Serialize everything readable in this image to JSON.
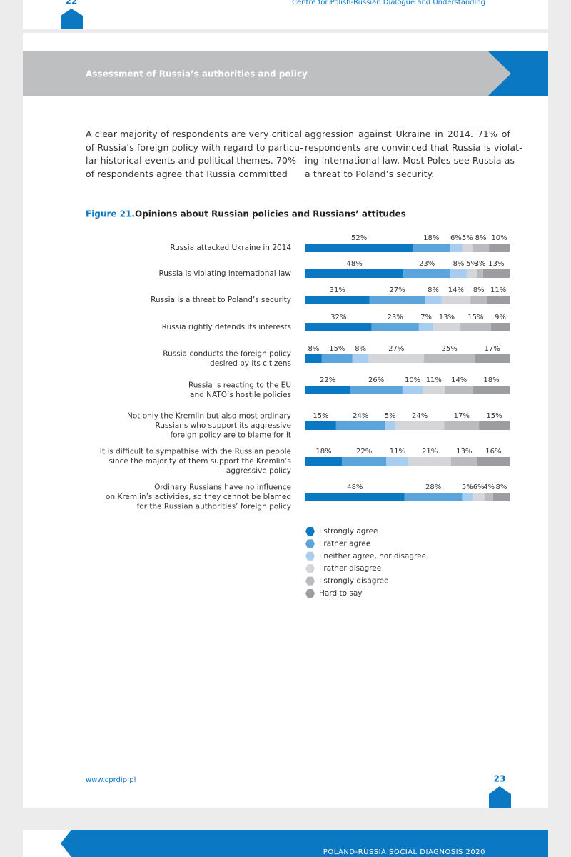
{
  "header": {
    "prev_page_number": "22",
    "prev_page_running_title": "Centre for Polish-Russian Dialogue and Understanding"
  },
  "section_title": "Assessment of Russia’s authorities and policy",
  "body": {
    "column_1": [
      "A clear majority of respondents are very critical",
      "of Russia’s foreign policy with regard to particu-",
      "lar historical events and political themes. 70%",
      "of respondents agree that Russia committed"
    ],
    "column_2": [
      "aggression against Ukraine in 2014. 71% of",
      "respondents are convinced that Russia is violat-",
      "ing international law. Most Poles see Russia as",
      "a threat to Poland’s security."
    ]
  },
  "figure": {
    "label": "Figure 21.",
    "title": "Opinions about Russian policies and Russians’ attitudes"
  },
  "chart_data": {
    "type": "bar",
    "orientation": "horizontal",
    "stacked": true,
    "categories": [
      [
        "Russia attacked Ukraine in 2014"
      ],
      [
        "Russia is violating international law"
      ],
      [
        "Russia is a threat to Poland’s security"
      ],
      [
        "Russia rightly defends its interests"
      ],
      [
        "Russia conducts the foreign policy",
        "desired by its citizens"
      ],
      [
        "Russia is reacting to the EU",
        "and NATO’s hostile policies"
      ],
      [
        "Not only the Kremlin but also most ordinary",
        "Russians who support its aggressive",
        "foreign policy are to blame for it"
      ],
      [
        "It is difficult to sympathise with the Russian people",
        "since the majority of them support the Kremlin’s",
        "aggressive policy"
      ],
      [
        "Ordinary Russians have no influence",
        "on Kremlin’s activities, so they cannot be blamed",
        "for the Russian authorities’ foreign policy"
      ]
    ],
    "series": [
      {
        "name": "I strongly agree",
        "color": "#0a78c2",
        "values": [
          52,
          48,
          31,
          32,
          8,
          22,
          15,
          18,
          48
        ],
        "value_labels": [
          "52%",
          "48%",
          "31%",
          "32%",
          "8%",
          "22%",
          "15%",
          "18%",
          "48%"
        ]
      },
      {
        "name": "I rather agree",
        "color": "#5ba5dc",
        "values": [
          18,
          23,
          27,
          23,
          15,
          26,
          24,
          22,
          28
        ],
        "value_labels": [
          "18%",
          "23%",
          "27%",
          "23%",
          "15%",
          "26%",
          "24%",
          "22%",
          "28%"
        ]
      },
      {
        "name": "I neither agree, nor disagree",
        "color": "#a8cdef",
        "values": [
          6,
          8,
          8,
          7,
          8,
          10,
          5,
          11,
          5
        ],
        "value_labels": [
          "6%",
          "8%",
          "8%",
          "7%",
          "8%",
          "10%",
          "5%",
          "11%",
          "5%"
        ]
      },
      {
        "name": "I rather disagree",
        "color": "#d4d6d9",
        "values": [
          5,
          5,
          14,
          13,
          27,
          11,
          24,
          21,
          6
        ],
        "value_labels": [
          "5%",
          "5%",
          "14%",
          "13%",
          "27%",
          "11%",
          "24%",
          "21%",
          "6%"
        ]
      },
      {
        "name": "I strongly disagree",
        "color": "#b9bbbe",
        "values": [
          8,
          3,
          8,
          15,
          25,
          14,
          17,
          13,
          4
        ],
        "value_labels": [
          "8%",
          "3%",
          "8%",
          "15%",
          "25%",
          "14%",
          "17%",
          "13%",
          "4%"
        ]
      },
      {
        "name": "Hard to say",
        "color": "#9b9da0",
        "values": [
          10,
          13,
          11,
          9,
          17,
          18,
          15,
          16,
          8
        ],
        "value_labels": [
          "10%",
          "13%",
          "11%",
          "9%",
          "17%",
          "18%",
          "15%",
          "16%",
          "8%"
        ]
      }
    ],
    "legend": "bottom"
  },
  "footer": {
    "url": "www.cprdip.pl",
    "page_number": "23",
    "next_page_running_title": "POLAND-RUSSIA SOCIAL DIAGNOSIS 2020"
  }
}
